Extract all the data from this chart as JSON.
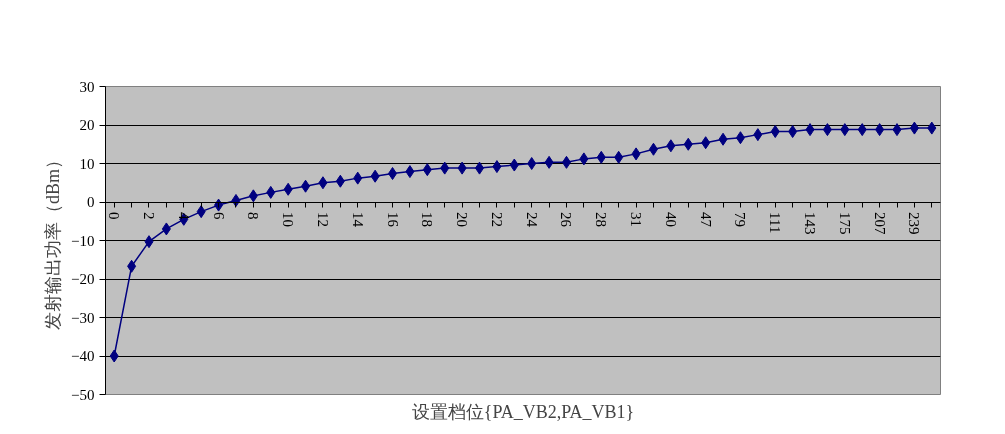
{
  "chart_data": {
    "type": "line",
    "xlabel": "设置档位{PA_VB2,PA_VB1}",
    "ylabel": "发射输出功率（dBm）",
    "categories": [
      "0",
      null,
      "2",
      null,
      "4",
      null,
      "6",
      null,
      "8",
      null,
      "10",
      null,
      "12",
      null,
      "14",
      null,
      "16",
      null,
      "18",
      null,
      "20",
      null,
      "22",
      null,
      "24",
      null,
      "26",
      null,
      "28",
      null,
      "31",
      null,
      "40",
      null,
      "47",
      null,
      "79",
      null,
      "111",
      null,
      "143",
      null,
      "175",
      null,
      "207",
      null,
      "239",
      null
    ],
    "series": [
      {
        "color": "#000080",
        "values": [
          -40,
          -16.7,
          -10.3,
          -7,
          -4.5,
          -2.5,
          -0.8,
          0.4,
          1.6,
          2.5,
          3.3,
          4.1,
          5,
          5.4,
          6.2,
          6.7,
          7.4,
          7.9,
          8.4,
          8.8,
          8.8,
          8.8,
          9.2,
          9.6,
          10,
          10.3,
          10.3,
          11.2,
          11.6,
          11.6,
          12.5,
          13.7,
          14.6,
          15,
          15.4,
          16.3,
          16.7,
          17.5,
          18.3,
          18.3,
          18.8,
          18.8,
          18.8,
          18.8,
          18.8,
          18.8,
          19.2,
          19.2
        ]
      }
    ],
    "ylim": [
      -50,
      30
    ],
    "yticks": [
      -50,
      -40,
      -30,
      -20,
      -10,
      0,
      10,
      20,
      30
    ],
    "grid": "y",
    "marker": "diamond",
    "line_style": "solid"
  }
}
